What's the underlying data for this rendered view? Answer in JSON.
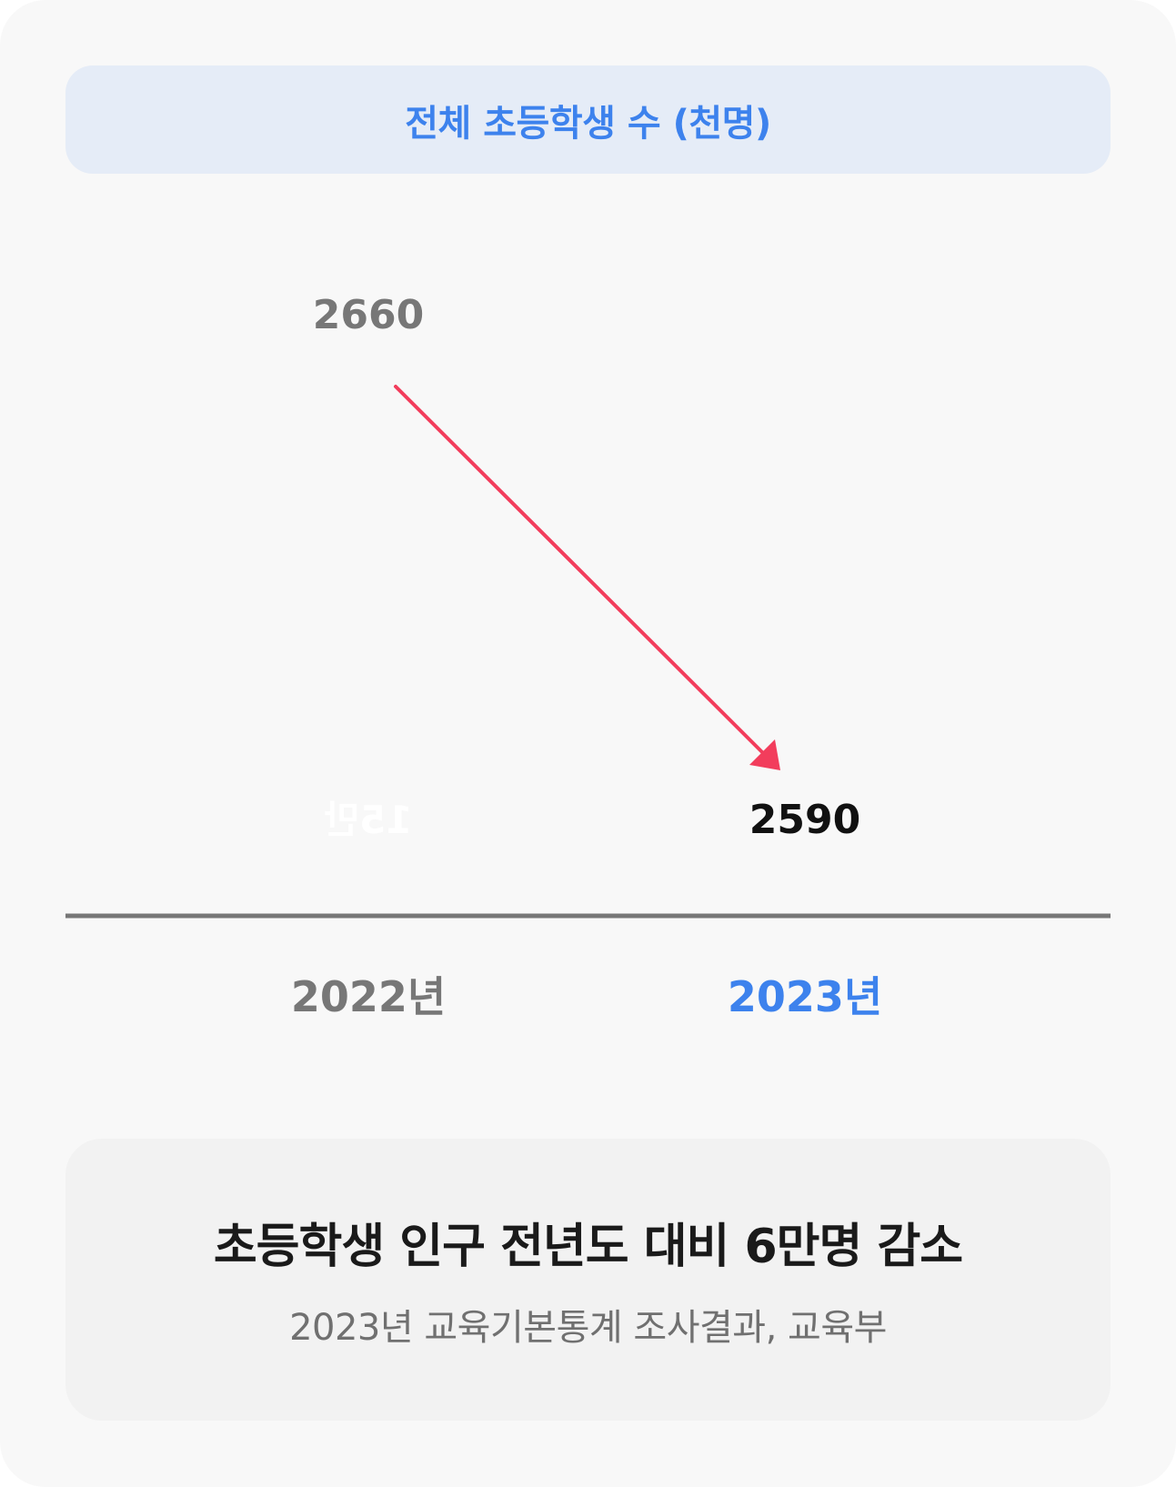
{
  "header": {
    "title": "전체 초등학생 수 (천명)"
  },
  "chart_data": {
    "type": "line",
    "categories": [
      "2022년",
      "2023년"
    ],
    "values": [
      2660,
      2590
    ],
    "value_labels": [
      "2660",
      "2590"
    ],
    "hidden_label": "15만",
    "title": "전체 초등학생 수 (천명)",
    "ylim": [
      2570,
      2680
    ],
    "grid": false,
    "colors": {
      "arrow": "#f23d5c",
      "baseline": "#777777",
      "label_muted": "#777777",
      "label_highlight": "#3d82ed",
      "value_highlight": "#111111",
      "ghost_text": "#ffffff"
    }
  },
  "footer": {
    "headline": "초등학생 인구 전년도 대비 6만명 감소",
    "source": "2023년 교육기본통계 조사결과, 교육부"
  }
}
